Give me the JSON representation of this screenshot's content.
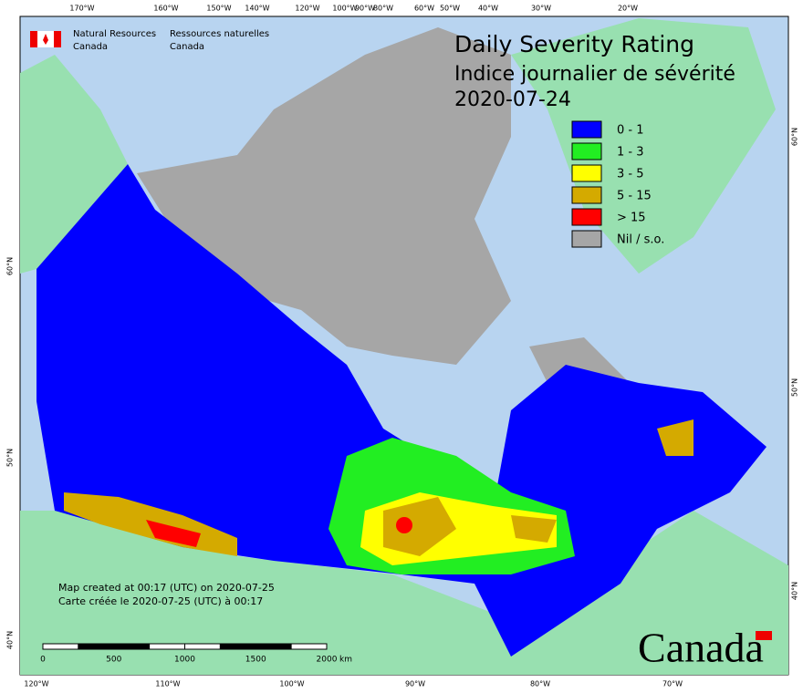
{
  "header": {
    "org_en": [
      "Natural Resources",
      "Canada"
    ],
    "org_fr": [
      "Ressources naturelles",
      "Canada"
    ]
  },
  "title": [
    "Daily Severity Rating",
    "Indice journalier de sévérité",
    "2020-07-24"
  ],
  "legend": [
    {
      "label": "0 - 1",
      "color": "#0000ff"
    },
    {
      "label": "1 - 3",
      "color": "#22ee22"
    },
    {
      "label": "3 - 5",
      "color": "#ffff00"
    },
    {
      "label": "5 - 15",
      "color": "#d4aa00"
    },
    {
      "label": "> 15",
      "color": "#ff0000"
    },
    {
      "label": "Nil / s.o.",
      "color": "#a6a6a6"
    }
  ],
  "notes": [
    "Map created at 00:17 (UTC) on 2020-07-25",
    "Carte créée le 2020-07-25 (UTC) à 00:17"
  ],
  "scale": {
    "ticks": [
      0,
      500,
      1000,
      1500,
      2000
    ],
    "unit": "km"
  },
  "graticule": {
    "top": [
      "170°W",
      "160°W",
      "150°W",
      "140°W",
      "120°W",
      "100°W",
      "90°W",
      "80°W",
      "60°W",
      "50°W",
      "40°W",
      "30°W",
      "20°W"
    ],
    "bottom": [
      "120°W",
      "110°W",
      "100°W",
      "90°W",
      "80°W",
      "70°W"
    ],
    "left": [
      "60°N",
      "50°N",
      "40°N"
    ],
    "right": [
      "60°N",
      "50°N",
      "40°N"
    ]
  },
  "wordmark": "Canada"
}
